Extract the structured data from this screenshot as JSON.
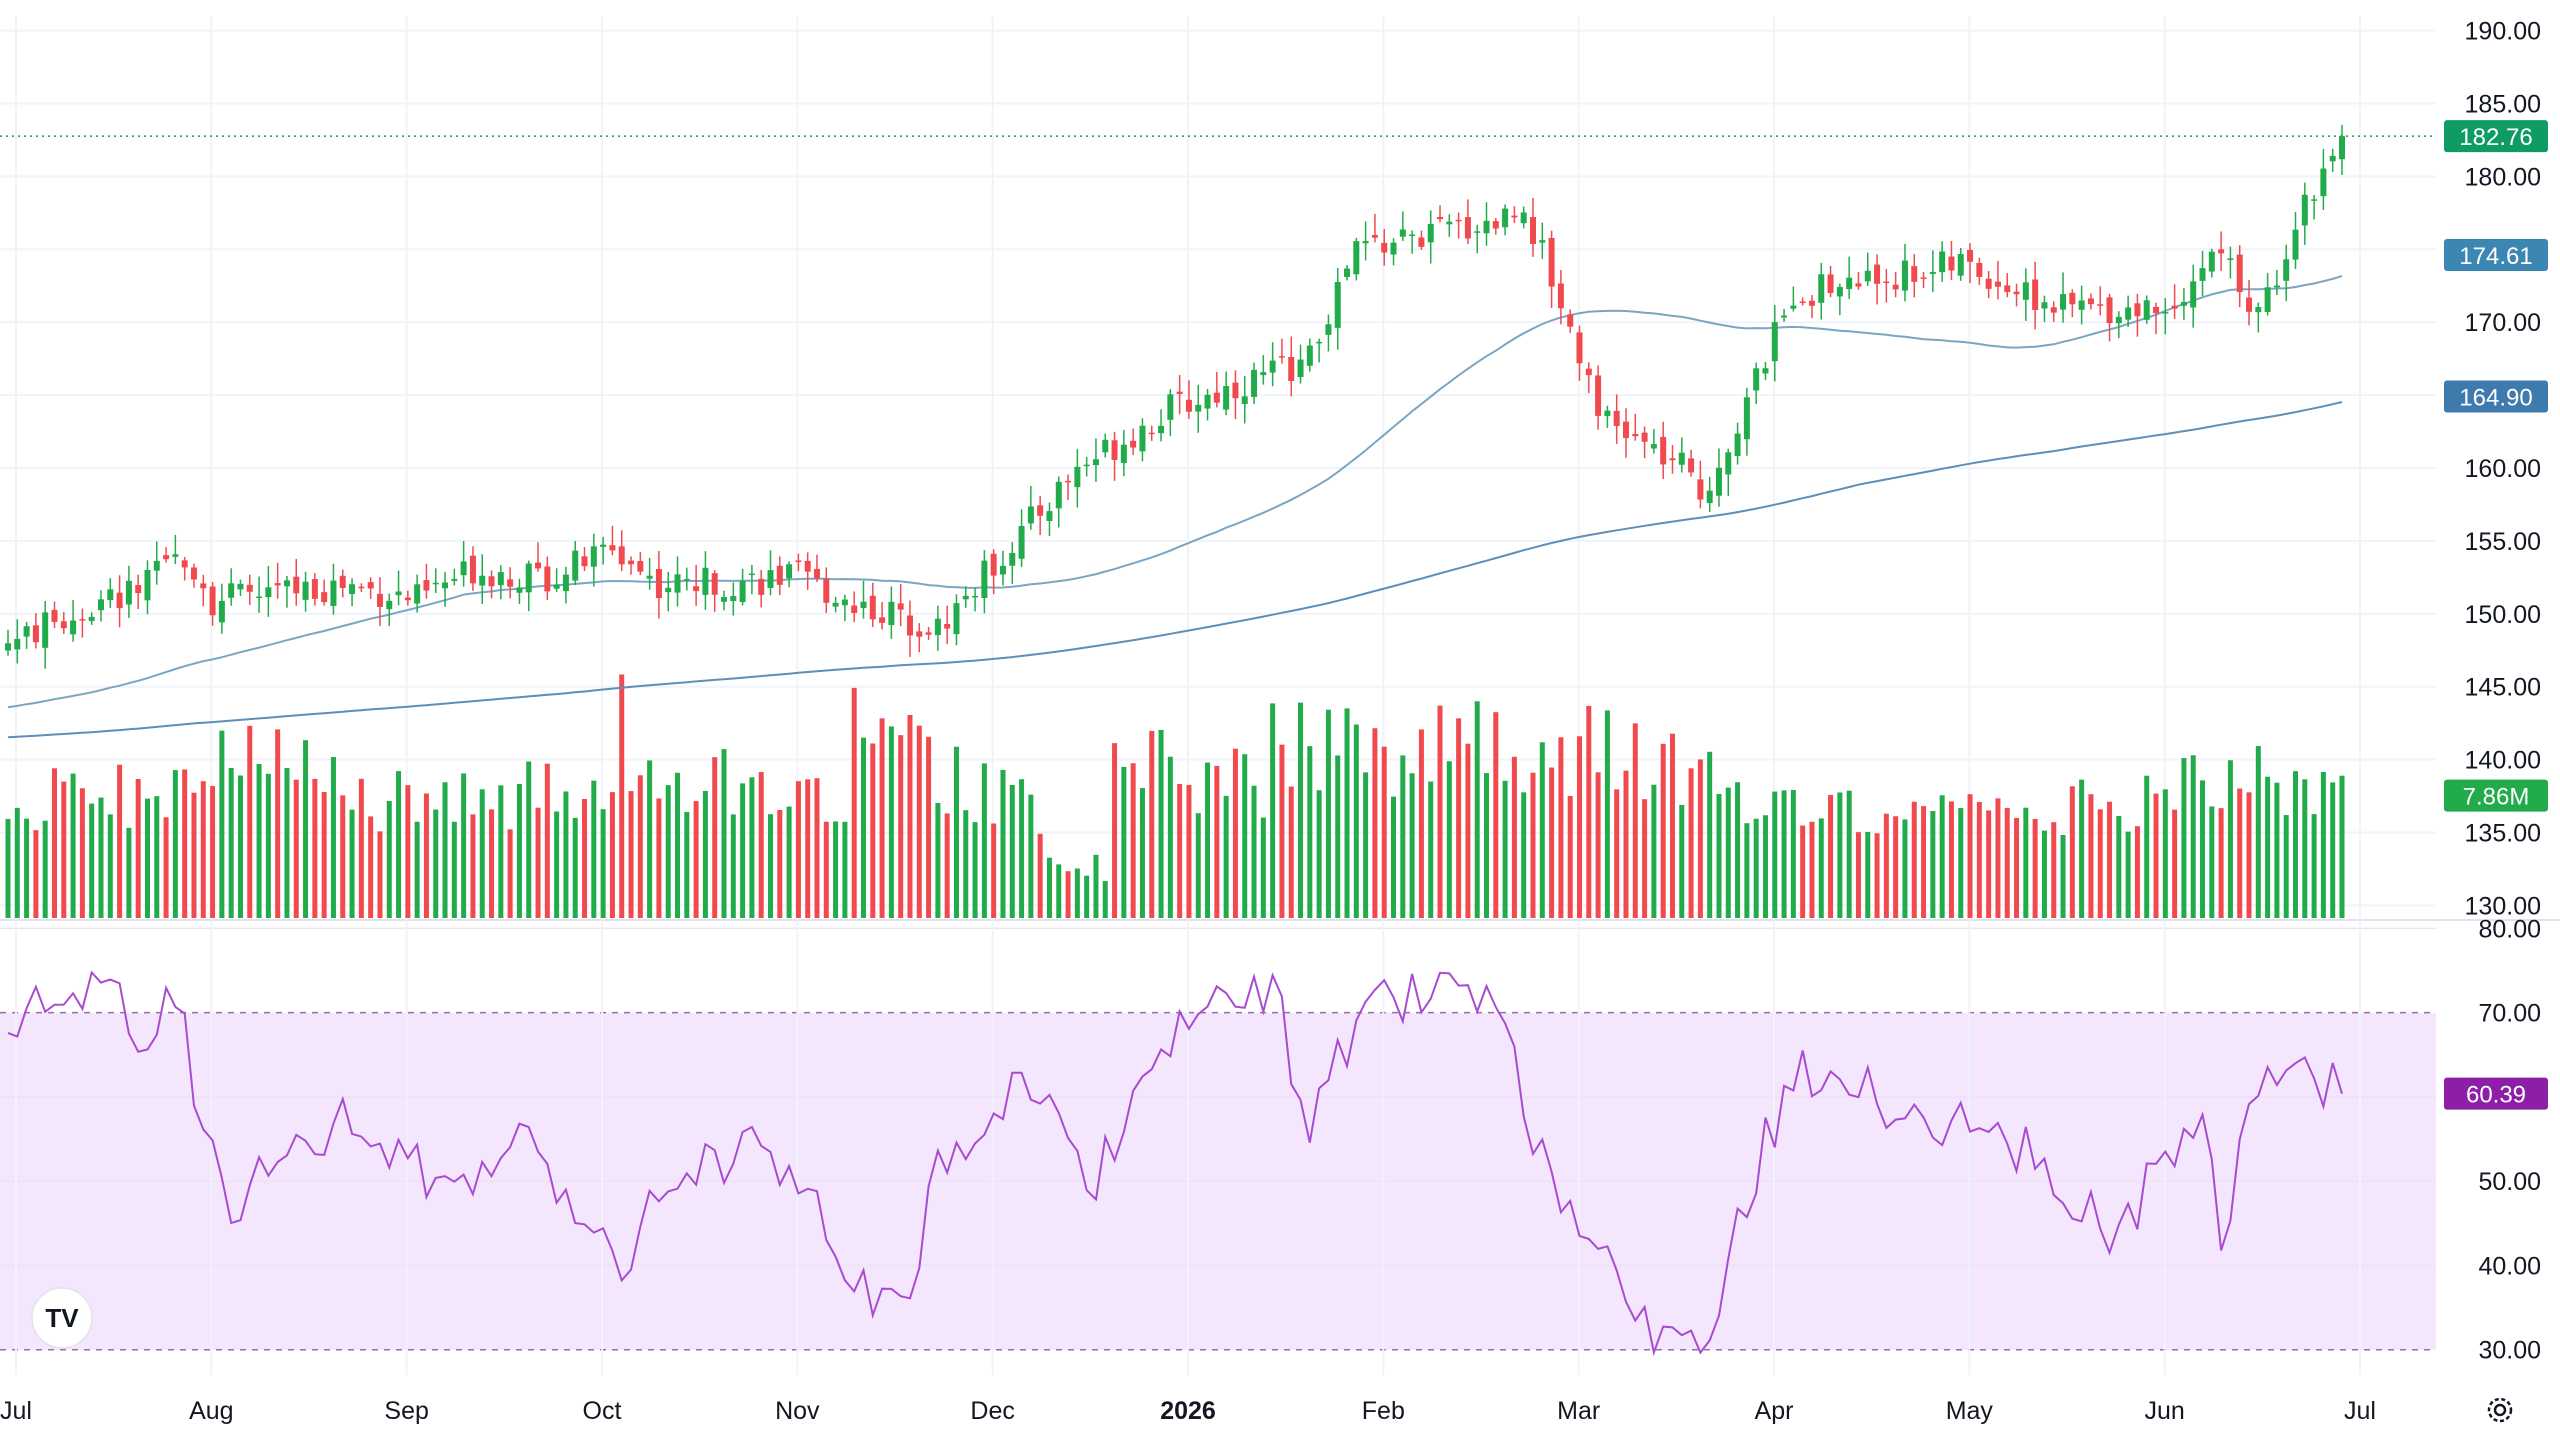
{
  "colors": {
    "up": "#22ab4a",
    "down": "#f04a4f",
    "ma_short": "#7aa6c2",
    "ma_long": "#5d8fb8",
    "rsi_line": "#a94bd0",
    "rsi_band": "#f3e6fd",
    "grid": "#f0f3fa",
    "price_badge": "#0f9c64",
    "volume_badge": "#22ab4a",
    "ma_short_badge": "#3c86b4",
    "ma_long_badge": "#3f7aad",
    "rsi_badge": "#8c1fa6"
  },
  "logo": {
    "text": "TV"
  },
  "settings_icon": "gear-icon",
  "chart_data": {
    "type": "candlestick",
    "price_axis": {
      "ylim": [
        129,
        191
      ],
      "ticks": [
        "190.00",
        "185.00",
        "180.00",
        "175.00",
        "170.00",
        "165.00",
        "160.00",
        "155.00",
        "150.00",
        "145.00",
        "140.00",
        "135.00",
        "130.00"
      ],
      "current_price": "182.76",
      "ma_short_value": "174.61",
      "ma_long_value": "164.90",
      "volume_value": "7.86M"
    },
    "rsi_axis": {
      "ylim": [
        27,
        81
      ],
      "ticks": [
        "80.00",
        "70.00",
        "60.00",
        "50.00",
        "40.00",
        "30.00"
      ],
      "current": "60.39",
      "upper_band": 70,
      "lower_band": 30
    },
    "time_axis": [
      {
        "label": "Jul",
        "bold": false
      },
      {
        "label": "Aug",
        "bold": false
      },
      {
        "label": "Sep",
        "bold": false
      },
      {
        "label": "Oct",
        "bold": false
      },
      {
        "label": "Nov",
        "bold": false
      },
      {
        "label": "Dec",
        "bold": false
      },
      {
        "label": "2026",
        "bold": true
      },
      {
        "label": "Feb",
        "bold": false
      },
      {
        "label": "Mar",
        "bold": false
      },
      {
        "label": "Apr",
        "bold": false
      },
      {
        "label": "May",
        "bold": false
      },
      {
        "label": "Jun",
        "bold": false
      },
      {
        "label": "Jul",
        "bold": false
      }
    ],
    "close_keypoints": [
      [
        0,
        148
      ],
      [
        15,
        152
      ],
      [
        19,
        154.2
      ],
      [
        22,
        151
      ],
      [
        36,
        152
      ],
      [
        44,
        151
      ],
      [
        50,
        153
      ],
      [
        58,
        152.5
      ],
      [
        65,
        154.5
      ],
      [
        70,
        152
      ],
      [
        85,
        152.5
      ],
      [
        90,
        151
      ],
      [
        95,
        150
      ],
      [
        100,
        149
      ],
      [
        115,
        160
      ],
      [
        125,
        164
      ],
      [
        140,
        167.5
      ],
      [
        145,
        175
      ],
      [
        160,
        177
      ],
      [
        163,
        178
      ],
      [
        172,
        163
      ],
      [
        180,
        160
      ],
      [
        182,
        158
      ],
      [
        186,
        163
      ],
      [
        192,
        172
      ],
      [
        210,
        174
      ],
      [
        220,
        171
      ],
      [
        232,
        171
      ],
      [
        238,
        175
      ],
      [
        242,
        170
      ],
      [
        246,
        177
      ],
      [
        251,
        182.8
      ]
    ],
    "volume_keypoints": [
      [
        0,
        6.4
      ],
      [
        20,
        7.0
      ],
      [
        21,
        9.5
      ],
      [
        40,
        6.5
      ],
      [
        65,
        7.0
      ],
      [
        66,
        12.0
      ],
      [
        67,
        8.0
      ],
      [
        90,
        6.5
      ],
      [
        91,
        12.7
      ],
      [
        92,
        10.0
      ],
      [
        110,
        6.0
      ],
      [
        112,
        3.0
      ],
      [
        118,
        2.8
      ],
      [
        119,
        8.5
      ],
      [
        135,
        7.6
      ],
      [
        136,
        9.6
      ],
      [
        150,
        9.2
      ],
      [
        158,
        10.5
      ],
      [
        164,
        8.0
      ],
      [
        172,
        10.0
      ],
      [
        180,
        8.0
      ],
      [
        192,
        6.0
      ],
      [
        200,
        6.5
      ],
      [
        225,
        6.2
      ],
      [
        235,
        7.5
      ],
      [
        251,
        7.86
      ]
    ],
    "rsi_keypoints": [
      [
        0,
        68
      ],
      [
        6,
        72
      ],
      [
        10,
        74
      ],
      [
        14,
        67
      ],
      [
        18,
        73
      ],
      [
        20,
        62
      ],
      [
        24,
        48
      ],
      [
        30,
        52
      ],
      [
        36,
        57
      ],
      [
        46,
        50
      ],
      [
        56,
        54
      ],
      [
        66,
        41
      ],
      [
        70,
        49
      ],
      [
        80,
        55
      ],
      [
        96,
        33
      ],
      [
        100,
        52
      ],
      [
        110,
        63
      ],
      [
        116,
        49
      ],
      [
        126,
        70
      ],
      [
        136,
        72
      ],
      [
        140,
        58
      ],
      [
        147,
        71
      ],
      [
        155,
        72
      ],
      [
        160,
        70
      ],
      [
        166,
        48
      ],
      [
        176,
        33
      ],
      [
        182,
        29
      ],
      [
        186,
        46
      ],
      [
        192,
        63
      ],
      [
        214,
        55
      ],
      [
        220,
        51
      ],
      [
        226,
        44
      ],
      [
        236,
        56
      ],
      [
        238,
        44
      ],
      [
        242,
        62
      ],
      [
        246,
        65
      ],
      [
        251,
        60.4
      ]
    ]
  }
}
